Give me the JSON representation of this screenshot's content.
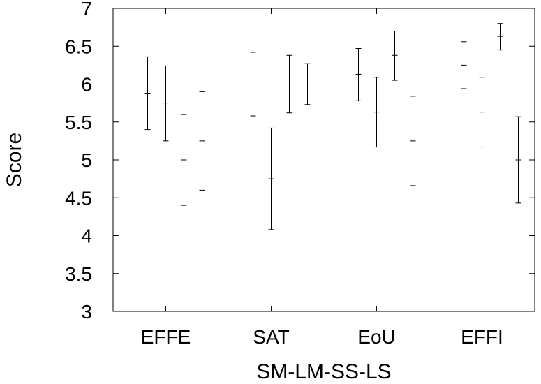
{
  "chart_data": {
    "type": "errorbar",
    "title": "",
    "xlabel": "SM-LM-SS-LS",
    "ylabel": "Score",
    "ylim": [
      3,
      7
    ],
    "yticks": [
      "3",
      "3.5",
      "4",
      "4.5",
      "5",
      "5.5",
      "6",
      "6.5",
      "7"
    ],
    "categories": [
      "EFFE",
      "SAT",
      "EoU",
      "EFFI"
    ],
    "grid": false,
    "legend": "none",
    "series": [
      {
        "values": [
          {
            "mean": 5.88,
            "low": 5.4,
            "high": 6.36
          },
          {
            "mean": 6.0,
            "low": 5.58,
            "high": 6.42
          },
          {
            "mean": 6.13,
            "low": 5.78,
            "high": 6.47
          },
          {
            "mean": 6.25,
            "low": 5.94,
            "high": 6.56
          }
        ]
      },
      {
        "values": [
          {
            "mean": 5.75,
            "low": 5.25,
            "high": 6.24
          },
          {
            "mean": 4.75,
            "low": 4.08,
            "high": 5.42
          },
          {
            "mean": 5.63,
            "low": 5.17,
            "high": 6.09
          },
          {
            "mean": 5.63,
            "low": 5.17,
            "high": 6.09
          }
        ]
      },
      {
        "values": [
          {
            "mean": 5.0,
            "low": 4.4,
            "high": 5.6
          },
          {
            "mean": 6.0,
            "low": 5.62,
            "high": 6.38
          },
          {
            "mean": 6.38,
            "low": 6.05,
            "high": 6.7
          },
          {
            "mean": 6.63,
            "low": 6.45,
            "high": 6.8
          }
        ]
      },
      {
        "values": [
          {
            "mean": 5.25,
            "low": 4.6,
            "high": 5.9
          },
          {
            "mean": 6.0,
            "low": 5.73,
            "high": 6.27
          },
          {
            "mean": 5.25,
            "low": 4.66,
            "high": 5.84
          },
          {
            "mean": 5.0,
            "low": 4.43,
            "high": 5.57
          }
        ]
      }
    ]
  }
}
